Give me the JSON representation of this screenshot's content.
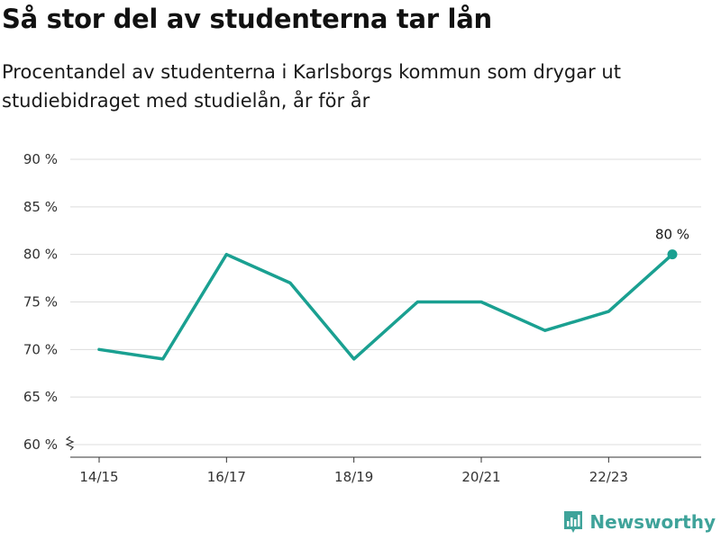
{
  "title": "Så stor del av studenterna tar lån",
  "subtitle": "Procentandel av studenterna i Karlsborgs kommun som drygar ut studiebidraget med studielån, år för år",
  "brand": {
    "name": "Newsworthy",
    "icon": "newsworthy-logo-icon"
  },
  "colors": {
    "line": "#1aa091",
    "grid": "#dcdcdc",
    "axis": "#333333",
    "brand": "#3fa39a"
  },
  "chart_data": {
    "type": "line",
    "x": [
      "14/15",
      "15/16",
      "16/17",
      "17/18",
      "18/19",
      "19/20",
      "20/21",
      "21/22",
      "22/23",
      "23/24"
    ],
    "x_tick_labels": [
      "14/15",
      "16/17",
      "18/19",
      "20/21",
      "22/23"
    ],
    "series": [
      {
        "values": [
          70,
          69,
          80,
          77,
          69,
          75,
          75,
          72,
          74,
          80
        ]
      }
    ],
    "y_ticks": [
      60,
      65,
      70,
      75,
      80,
      85,
      90
    ],
    "y_tick_labels": [
      "60 %",
      "65 %",
      "70 %",
      "75 %",
      "80 %",
      "85 %",
      "90 %"
    ],
    "ylim": [
      60,
      90
    ],
    "grid": true,
    "axis_break": true,
    "annotation": {
      "index": 9,
      "label": "80 %"
    }
  }
}
